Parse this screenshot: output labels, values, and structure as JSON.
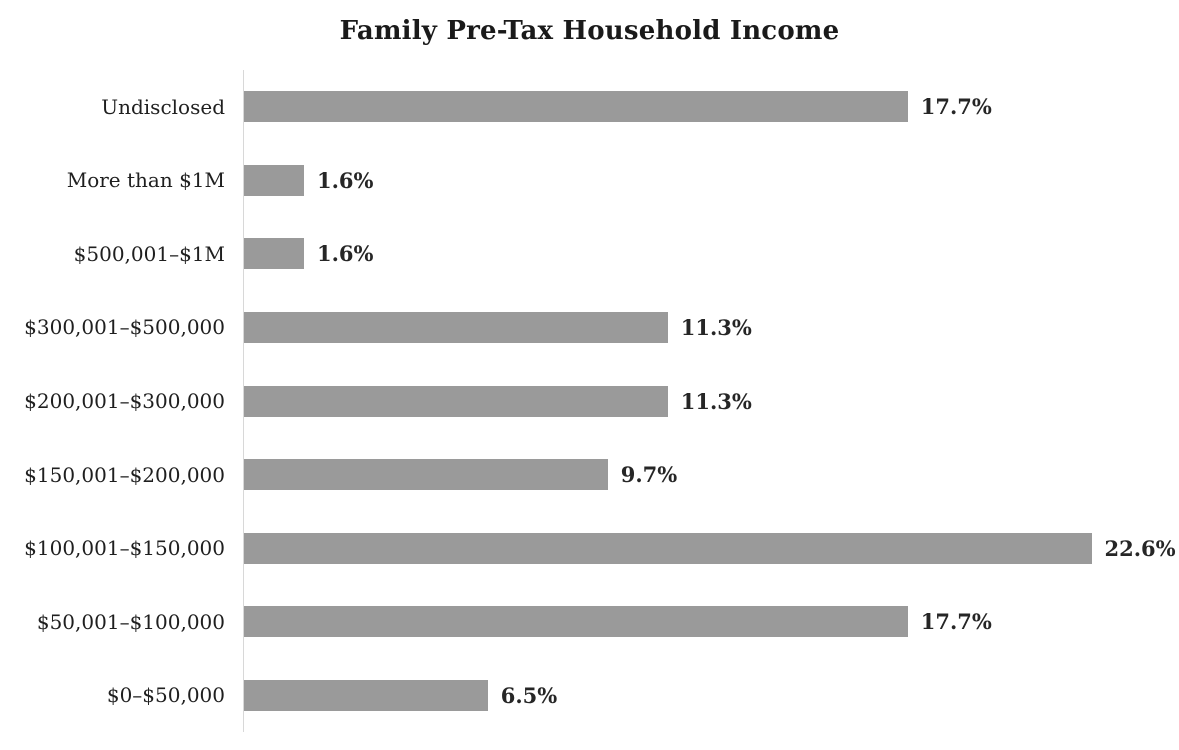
{
  "chart_data": {
    "type": "bar",
    "orientation": "horizontal",
    "title": "Family Pre-Tax Household Income",
    "categories": [
      "Undisclosed",
      "More than $1M",
      "$500,001–$1M",
      "$300,001–$500,000",
      "$200,001–$300,000",
      "$150,001–$200,000",
      "$100,001–$150,000",
      "$50,001–$100,000",
      "$0–$50,000"
    ],
    "values": [
      17.7,
      1.6,
      1.6,
      11.3,
      11.3,
      9.7,
      22.6,
      17.7,
      6.5
    ],
    "value_labels": [
      "17.7%",
      "1.6%",
      "1.6%",
      "11.3%",
      "11.3%",
      "9.7%",
      "22.6%",
      "17.7%",
      "6.5%"
    ],
    "xlabel": "",
    "ylabel": "",
    "xlim": [
      0,
      25
    ],
    "grid": false,
    "legend": false,
    "bar_color": "#9a9a9a",
    "axis_line_color": "#d8d8d8",
    "title_color": "#1a1a1a",
    "label_color": "#1f1f1f",
    "value_label_color": "#262626"
  }
}
